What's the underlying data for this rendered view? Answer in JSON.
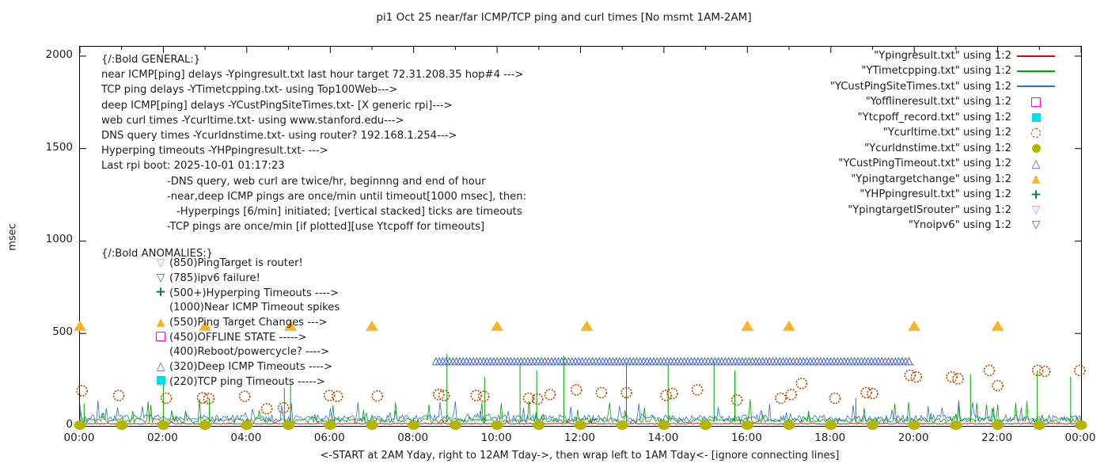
{
  "chart_data": {
    "type": "line",
    "title": "pi1 Oct 25  near/far ICMP/TCP ping and curl times [No msmt 1AM-2AM]",
    "ylabel": "msec",
    "xlabel": "<-START at 2AM Yday, right to 12AM Tday->, then wrap left to 1AM Tday<- [ignore connecting lines]",
    "ylim": [
      0,
      2051
    ],
    "yticks": [
      0,
      500,
      1000,
      1500,
      2000
    ],
    "xlim_hours": [
      0,
      24
    ],
    "xticks": [
      "00:00",
      "02:00",
      "04:00",
      "06:00",
      "08:00",
      "10:00",
      "12:00",
      "14:00",
      "16:00",
      "18:00",
      "20:00",
      "22:00",
      "00:00"
    ],
    "grid": false,
    "legend_position": "top-right",
    "legend": [
      {
        "label": "\"Ypingresult.txt\" using 1:2",
        "sample": "line",
        "color": "#e60000"
      },
      {
        "label": "\"YTimetcpping.txt\" using 1:2",
        "sample": "line",
        "color": "#00a000"
      },
      {
        "label": "\"YCustPingSiteTimes.txt\" using 1:2",
        "sample": "line",
        "color": "#2a6fce"
      },
      {
        "label": "\"Yofflineresult.txt\" using 1:2",
        "sample": "square-open",
        "color": "#ff00ff"
      },
      {
        "label": "\"Ytcpoff_record.txt\" using 1:2",
        "sample": "square-fill",
        "color": "#00e0e8"
      },
      {
        "label": "\"Ycurltime.txt\" using 1:2",
        "sample": "circle-open",
        "color": "#bc4a00"
      },
      {
        "label": "\"Ycurldnstime.txt\" using 1:2",
        "sample": "circle-fill",
        "color": "#b5b500"
      },
      {
        "label": "\"YCustPingTimeout.txt\" using 1:2",
        "sample": "triangle-open",
        "color": "#4565c4"
      },
      {
        "label": "\"Ypingtargetchange\" using 1:2",
        "sample": "triangle-fill",
        "color": "#fcb326"
      },
      {
        "label": "\"YHPpingresult.txt\" using 1:2",
        "sample": "plus",
        "color": "#127a4a"
      },
      {
        "label": "\"YpingtargetISrouter\" using 1:2",
        "sample": "triangle-down-open",
        "color": "#ee86ee"
      },
      {
        "label": "\"Ynoipv6\" using 1:2",
        "sample": "triangle-down-open",
        "color": "#35708e"
      }
    ],
    "general_block": {
      "lines": [
        {
          "text": "{/:Bold GENERAL:}",
          "indent": 0
        },
        {
          "text": "near ICMP[ping] delays -Ypingresult.txt last hour target 72.31.208.35 hop#4 --->",
          "indent": 0
        },
        {
          "text": "TCP ping delays -YTimetcpping.txt- using Top100Web--->",
          "indent": 0
        },
        {
          "text": "deep ICMP[ping] delays -YCustPingSiteTimes.txt- [X generic rpi]--->",
          "indent": 0
        },
        {
          "text": "web curl times -Ycurltime.txt- using www.stanford.edu--->",
          "indent": 0
        },
        {
          "text": "DNS query times -Ycurldnstime.txt- using router? 192.168.1.254--->",
          "indent": 0
        },
        {
          "text": "Hyperping timeouts -YHPpingresult.txt- --->",
          "indent": 0
        },
        {
          "text": "Last rpi boot: 2025-10-01 01:17:23",
          "indent": 0
        },
        {
          "text": "-DNS query, web curl are twice/hr, beginnng and end of hour",
          "indent": 1
        },
        {
          "text": "-near,deep ICMP pings are once/min until timeout[1000 msec], then:",
          "indent": 1
        },
        {
          "text": "-Hyperpings [6/min] initiated; [vertical stacked] ticks are timeouts",
          "indent": 2
        },
        {
          "text": "-TCP pings are once/min [if plotted][use Ytcpoff for timeouts]",
          "indent": 1
        }
      ]
    },
    "anomalies_block": {
      "header": "{/:Bold ANOMALIES:}",
      "items": [
        {
          "marker": "triangle-down-open",
          "color": "#ee86ee",
          "text": "(850)PingTarget is router!"
        },
        {
          "marker": "triangle-down-open",
          "color": "#35708e",
          "text": "(785)ipv6 failure!"
        },
        {
          "marker": "plus",
          "color": "#127a4a",
          "text": "(500+)Hyperping Timeouts ---->"
        },
        {
          "marker": "none",
          "color": "",
          "text": "(1000)Near ICMP Timeout spikes"
        },
        {
          "marker": "triangle-fill",
          "color": "#fcb326",
          "text": "(550)Ping Target Changes --->"
        },
        {
          "marker": "square-open",
          "color": "#ff00ff",
          "text": "(450)OFFLINE STATE ----->"
        },
        {
          "marker": "none",
          "color": "",
          "text": "(400)Reboot/powercycle? ---->"
        },
        {
          "marker": "triangle-open",
          "color": "#4565c4",
          "text": "(320)Deep ICMP Timeouts ---->"
        },
        {
          "marker": "square-fill",
          "color": "#00e0e8",
          "text": "(220)TCP ping Timeouts ----->"
        }
      ]
    },
    "series": [
      {
        "name": "Ypingresult.txt (near ICMP ping)",
        "style": "noisy-line",
        "color": "#e60000",
        "approx_baseline_msec": 12,
        "approx_range_msec": [
          8,
          35
        ],
        "note": "flat line hugging 0 axis, once/min samples 0-24h"
      },
      {
        "name": "YTimetcpping.txt (TCP ping)",
        "style": "noisy-line",
        "color": "#00a000",
        "approx_baseline_msec": 30,
        "approx_range_msec": [
          15,
          200
        ],
        "tall_spikes_hour_msec": [
          [
            0.1,
            120
          ],
          [
            2.0,
            250
          ],
          [
            3.1,
            150
          ],
          [
            4.9,
            205
          ],
          [
            5.05,
            230
          ],
          [
            8.8,
            390
          ],
          [
            9.7,
            265
          ],
          [
            10.55,
            330
          ],
          [
            10.95,
            300
          ],
          [
            11.6,
            380
          ],
          [
            13.1,
            340
          ],
          [
            14.1,
            330
          ],
          [
            15.2,
            350
          ],
          [
            15.7,
            300
          ],
          [
            18.6,
            150
          ],
          [
            21.35,
            280
          ],
          [
            22.95,
            300
          ],
          [
            23.75,
            265
          ]
        ]
      },
      {
        "name": "YCustPingSiteTimes.txt (deep ICMP ping)",
        "style": "noisy-line",
        "color": "#2a6fce",
        "approx_baseline_msec": 40,
        "approx_range_msec": [
          20,
          160
        ],
        "note": "dense band 20-90 msec with spikes to ~160"
      },
      {
        "name": "Ycurltime.txt (web curl times)",
        "style": "open-dashed-circle",
        "color": "#bc4a00",
        "points_hour_msec": [
          [
            0.05,
            190
          ],
          [
            0.93,
            165
          ],
          [
            2.07,
            150
          ],
          [
            2.94,
            152
          ],
          [
            3.09,
            148
          ],
          [
            3.95,
            160
          ],
          [
            4.48,
            93
          ],
          [
            4.88,
            98
          ],
          [
            5.98,
            165
          ],
          [
            6.17,
            160
          ],
          [
            7.13,
            162
          ],
          [
            8.6,
            170
          ],
          [
            8.73,
            165
          ],
          [
            9.5,
            165
          ],
          [
            9.68,
            160
          ],
          [
            10.76,
            150
          ],
          [
            10.97,
            145
          ],
          [
            11.27,
            170
          ],
          [
            11.9,
            195
          ],
          [
            12.5,
            180
          ],
          [
            13.1,
            180
          ],
          [
            14.05,
            165
          ],
          [
            14.2,
            175
          ],
          [
            14.8,
            195
          ],
          [
            15.75,
            140
          ],
          [
            16.8,
            150
          ],
          [
            17.05,
            170
          ],
          [
            17.3,
            230
          ],
          [
            18.1,
            150
          ],
          [
            18.85,
            180
          ],
          [
            19.0,
            175
          ],
          [
            19.9,
            274
          ],
          [
            20.05,
            265
          ],
          [
            20.9,
            265
          ],
          [
            21.05,
            255
          ],
          [
            21.8,
            300
          ],
          [
            22.0,
            218
          ],
          [
            22.96,
            300
          ],
          [
            23.13,
            295
          ],
          [
            23.97,
            300
          ]
        ]
      },
      {
        "name": "Ycurldnstime.txt (DNS query times)",
        "style": "filled-circle",
        "color": "#b5b500",
        "points_hour_msec": [
          [
            0,
            4
          ],
          [
            1,
            4
          ],
          [
            2,
            4
          ],
          [
            3,
            4
          ],
          [
            4,
            4
          ],
          [
            5,
            4
          ],
          [
            6,
            4
          ],
          [
            7,
            4
          ],
          [
            8,
            4
          ],
          [
            9,
            4
          ],
          [
            10,
            4
          ],
          [
            11,
            4
          ],
          [
            12,
            4
          ],
          [
            13,
            4
          ],
          [
            14,
            4
          ],
          [
            15,
            4
          ],
          [
            16,
            4
          ],
          [
            17,
            4
          ],
          [
            18,
            4
          ],
          [
            19,
            4
          ],
          [
            20,
            4
          ],
          [
            21,
            4
          ],
          [
            22,
            4
          ],
          [
            23,
            4
          ],
          [
            24,
            4
          ]
        ]
      },
      {
        "name": "YCustPingTimeout.txt (deep ICMP timeouts)",
        "style": "open-triangle-band",
        "color": "#4565c4",
        "band": {
          "y_msec": 330,
          "from_hour": 8.45,
          "to_hour": 20.0
        }
      },
      {
        "name": "Ypingtargetchange",
        "style": "filled-triangle",
        "color": "#fcb326",
        "y_msec": 540,
        "hours": [
          0,
          3.0,
          5.05,
          7.0,
          10.0,
          12.15,
          16.0,
          17.0,
          20.0,
          22.0
        ]
      },
      {
        "name": "YHPpingresult.txt (Hyperping timeouts)",
        "style": "plus",
        "color": "#127a4a",
        "points_hour_msec": []
      },
      {
        "name": "Yofflineresult.txt",
        "style": "open-square",
        "color": "#ff00ff",
        "points_hour_msec": []
      },
      {
        "name": "Ytcpoff_record.txt",
        "style": "filled-square",
        "color": "#00e0e8",
        "points_hour_msec": []
      },
      {
        "name": "YpingtargetISrouter",
        "style": "open-triangle-down",
        "color": "#ee86ee",
        "points_hour_msec": []
      },
      {
        "name": "Ynoipv6",
        "style": "open-triangle-down",
        "color": "#35708e",
        "points_hour_msec": []
      }
    ]
  }
}
